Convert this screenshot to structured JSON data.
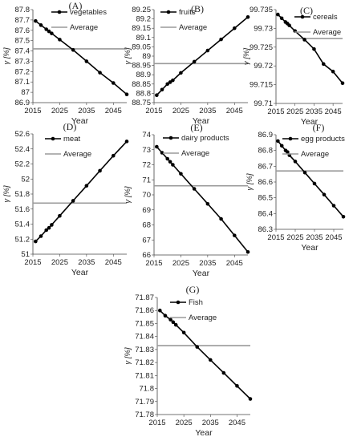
{
  "colors": {
    "series": "#000000",
    "average": "#9a9a9a",
    "axis": "#444444"
  },
  "chart_data": [
    {
      "type": "line",
      "title": "(A)",
      "xlabel": "Year",
      "ylabel": "γ [%]",
      "xlim": [
        2015,
        2050
      ],
      "xticks": [
        2015,
        2025,
        2035,
        2045
      ],
      "ylim": [
        86.9,
        87.8
      ],
      "yticks": [
        "86.9",
        "87",
        "87.1",
        "87.2",
        "87.3",
        "87.4",
        "87.5",
        "87.6",
        "87.7",
        "87.8"
      ],
      "grid": false,
      "legend": "top-right",
      "series": [
        {
          "name": "vegetables",
          "x": [
            2016,
            2018,
            2020,
            2021,
            2022,
            2025,
            2030,
            2035,
            2040,
            2045,
            2050
          ],
          "y": [
            87.69,
            87.65,
            87.61,
            87.59,
            87.57,
            87.51,
            87.41,
            87.3,
            87.19,
            87.09,
            86.98
          ]
        },
        {
          "name": "Average",
          "x": [
            2015,
            2050
          ],
          "y": [
            87.42,
            87.42
          ]
        }
      ]
    },
    {
      "type": "line",
      "title": "(B)",
      "xlabel": "Year",
      "ylabel": "γ [%]",
      "xlim": [
        2015,
        2050
      ],
      "xticks": [
        2015,
        2025,
        2035,
        2045
      ],
      "ylim": [
        88.75,
        89.25
      ],
      "yticks": [
        "88.75",
        "88.8",
        "88.85",
        "88.9",
        "88.95",
        "89",
        "89.05",
        "89.1",
        "89.15",
        "89.2",
        "89.25"
      ],
      "grid": false,
      "legend": "top-left",
      "series": [
        {
          "name": "fruits",
          "x": [
            2016,
            2018,
            2020,
            2021,
            2022,
            2025,
            2030,
            2035,
            2040,
            2045,
            2050
          ],
          "y": [
            88.79,
            88.82,
            88.85,
            88.86,
            88.87,
            88.91,
            88.97,
            89.03,
            89.09,
            89.15,
            89.21
          ]
        },
        {
          "name": "Average",
          "x": [
            2015,
            2050
          ],
          "y": [
            88.96,
            88.96
          ]
        }
      ]
    },
    {
      "type": "line",
      "title": "(C)",
      "xlabel": "Year",
      "ylabel": "γ [%]",
      "xlim": [
        2015,
        2050
      ],
      "xticks": [
        2015,
        2025,
        2035,
        2045
      ],
      "ylim": [
        99.71,
        99.735
      ],
      "yticks": [
        "99.71",
        "99.715",
        "99.72",
        "99.725",
        "99.73",
        "99.735"
      ],
      "grid": false,
      "legend": "top-right",
      "series": [
        {
          "name": "cereals",
          "x": [
            2016,
            2018,
            2020,
            2021,
            2022,
            2025,
            2030,
            2035,
            2040,
            2045,
            2050
          ],
          "y": [
            99.7337,
            99.7327,
            99.7317,
            99.7313,
            99.7308,
            99.7293,
            99.727,
            99.7245,
            99.7205,
            99.7185,
            99.7154
          ]
        },
        {
          "name": "Average",
          "x": [
            2015,
            2050
          ],
          "y": [
            99.7273,
            99.7273
          ]
        }
      ]
    },
    {
      "type": "line",
      "title": "(D)",
      "xlabel": "Year",
      "ylabel": "γ [%]",
      "xlim": [
        2015,
        2050
      ],
      "xticks": [
        2015,
        2025,
        2035,
        2045
      ],
      "ylim": [
        51,
        52.6
      ],
      "yticks": [
        "51",
        "51.2",
        "51.4",
        "51.6",
        "51.8",
        "52",
        "52.2",
        "52.4",
        "52.6"
      ],
      "grid": false,
      "legend": "top-left",
      "series": [
        {
          "name": "meat",
          "x": [
            2016,
            2018,
            2020,
            2021,
            2022,
            2025,
            2030,
            2035,
            2040,
            2045,
            2050
          ],
          "y": [
            51.17,
            51.24,
            51.32,
            51.35,
            51.39,
            51.51,
            51.71,
            51.91,
            52.11,
            52.31,
            52.5
          ]
        },
        {
          "name": "Average",
          "x": [
            2015,
            2050
          ],
          "y": [
            51.68,
            51.68
          ]
        }
      ]
    },
    {
      "type": "line",
      "title": "(E)",
      "xlabel": "Year",
      "ylabel": "γ [%]",
      "xlim": [
        2015,
        2050
      ],
      "xticks": [
        2015,
        2025,
        2035,
        2045
      ],
      "ylim": [
        66,
        74
      ],
      "yticks": [
        "66",
        "67",
        "68",
        "69",
        "70",
        "71",
        "72",
        "73",
        "74"
      ],
      "grid": false,
      "legend": "top-right",
      "series": [
        {
          "name": "dairy products",
          "x": [
            2016,
            2018,
            2020,
            2021,
            2022,
            2025,
            2030,
            2035,
            2040,
            2045,
            2050
          ],
          "y": [
            73.2,
            72.8,
            72.4,
            72.2,
            72.0,
            71.4,
            70.4,
            69.4,
            68.4,
            67.3,
            66.2
          ]
        },
        {
          "name": "Average",
          "x": [
            2015,
            2050
          ],
          "y": [
            70.6,
            70.6
          ]
        }
      ]
    },
    {
      "type": "line",
      "title": "(F)",
      "xlabel": "Year",
      "ylabel": "γ [%]",
      "xlim": [
        2015,
        2050
      ],
      "xticks": [
        2015,
        2025,
        2035,
        2045
      ],
      "ylim": [
        86.3,
        86.9
      ],
      "yticks": [
        "86.3",
        "86.4",
        "86.5",
        "86.6",
        "86.7",
        "86.8",
        "86.9"
      ],
      "grid": false,
      "legend": "top-right",
      "series": [
        {
          "name": "egg products",
          "x": [
            2016,
            2018,
            2020,
            2021,
            2022,
            2025,
            2030,
            2035,
            2040,
            2045,
            2050
          ],
          "y": [
            86.86,
            86.83,
            86.8,
            86.79,
            86.77,
            86.73,
            86.66,
            86.59,
            86.52,
            86.45,
            86.38
          ]
        },
        {
          "name": "Average",
          "x": [
            2015,
            2050
          ],
          "y": [
            86.67,
            86.67
          ]
        }
      ]
    },
    {
      "type": "line",
      "title": "(G)",
      "xlabel": "Year",
      "ylabel": "γ [%]",
      "xlim": [
        2015,
        2050
      ],
      "xticks": [
        2015,
        2025,
        2035,
        2045
      ],
      "ylim": [
        71.78,
        71.87
      ],
      "yticks": [
        "71.78",
        "71.79",
        "71.8",
        "71.81",
        "71.82",
        "71.83",
        "71.84",
        "71.85",
        "71.86",
        "71.87"
      ],
      "grid": false,
      "legend": "top-right",
      "series": [
        {
          "name": "Fish",
          "x": [
            2016,
            2018,
            2020,
            2021,
            2022,
            2025,
            2030,
            2035,
            2040,
            2045,
            2050
          ],
          "y": [
            71.86,
            71.856,
            71.853,
            71.851,
            71.849,
            71.843,
            71.832,
            71.822,
            71.812,
            71.802,
            71.792
          ]
        },
        {
          "name": "Average",
          "x": [
            2015,
            2050
          ],
          "y": [
            71.833,
            71.833
          ]
        }
      ]
    }
  ]
}
